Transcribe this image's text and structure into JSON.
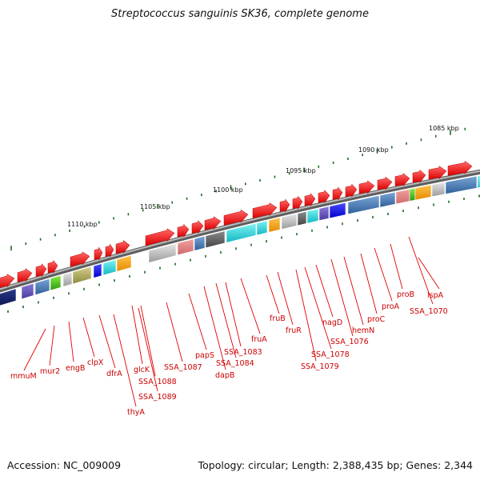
{
  "title": "Streptococcus sanguinis SK36, complete genome",
  "footer": {
    "accession": "Accession: NC_009009",
    "summary": "Topology: circular; Length: 2,388,435 bp; Genes: 2,344"
  },
  "scale_labels": [
    "1085 kbp",
    "1090 kbp",
    "1095 kbp",
    "1100 kbp",
    "1105 kbp",
    "1110 kbp"
  ],
  "gene_labels": [
    "lspA",
    "SSA_1070",
    "proB",
    "proA",
    "proC",
    "hemN",
    "SSA_1076",
    "nagD",
    "SSA_1078",
    "SSA_1079",
    "fruR",
    "fruB",
    "fruA",
    "SSA_1083",
    "SSA_1084",
    "dapB",
    "papS",
    "SSA_1087",
    "SSA_1088",
    "SSA_1089",
    "glcK",
    "thyA",
    "dfrA",
    "clpX",
    "engB",
    "mur2",
    "mmuM"
  ],
  "colors": {
    "backbone": "#8a8a8a",
    "forward_gene": "#ee0000",
    "scale_ticks": "#1e6b1e",
    "label_text": "#cc0000"
  }
}
